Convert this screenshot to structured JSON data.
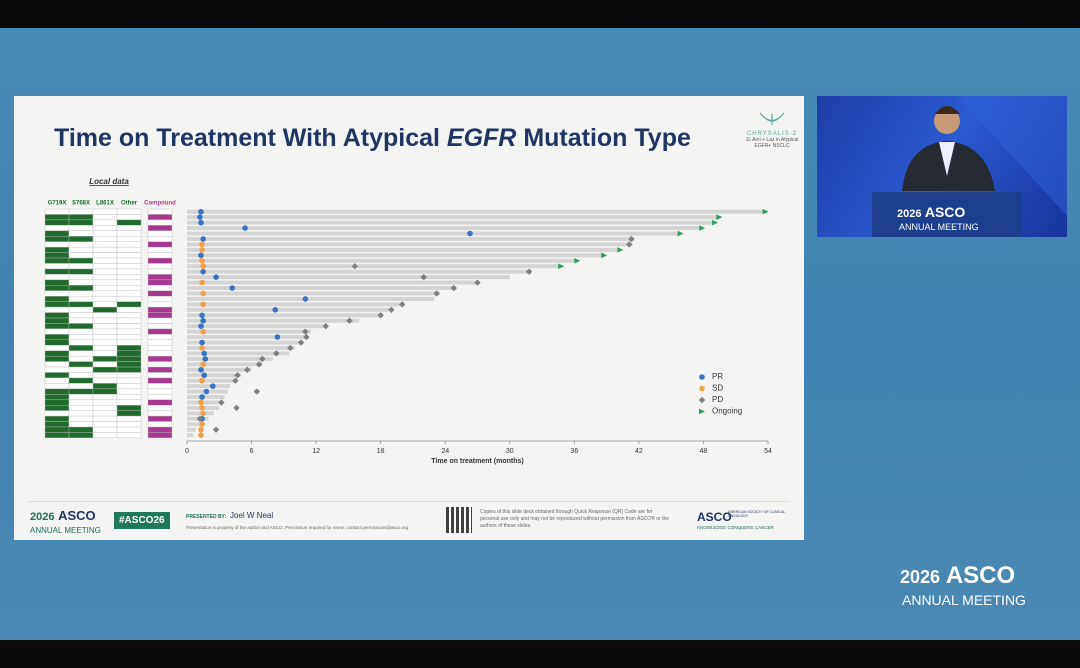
{
  "slide": {
    "title_prefix": "Time on Treatment With Atypical",
    "title_gene": "EGFR",
    "title_suffix": "Mutation Type",
    "logo_name": "CHRYSALIS-2",
    "logo_caption": "1L Ami + Laz in Atypical EGFR+ NSCLC",
    "local_data_label": "Local data",
    "footer": {
      "meeting_year": "2026",
      "meeting_name": "ASCO",
      "meeting_sub": "ANNUAL MEETING",
      "hashtag": "#ASCO26",
      "presented_by_label": "PRESENTED BY:",
      "presenter": "Joel W Neal",
      "property_note": "Presentation is property of the author and ASCO. Permission required for reuse; contact permissions@asco.org.",
      "qr_note": "Copies of this slide deck obtained through Quick Response (QR) Code are for personal use only and may not be reproduced without permission from ASCO® or the authors of these slides.",
      "asco_logo": "ASCO",
      "asco_society": "AMERICAN SOCIETY OF CLINICAL ONCOLOGY",
      "asco_tagline": "KNOWLEDGE CONQUERS CANCER"
    }
  },
  "chart_data": {
    "type": "swimmer",
    "xlabel": "Time on treatment (months)",
    "xlim": [
      0,
      54
    ],
    "xticks": [
      0,
      6,
      12,
      18,
      24,
      30,
      36,
      42,
      48,
      54
    ],
    "bar_color": "#d4d4d4",
    "durations": [
      53.5,
      49.2,
      48.8,
      47.6,
      45.6,
      41.6,
      41.4,
      40.0,
      38.5,
      36.0,
      34.5,
      32.0,
      30.0,
      27.0,
      25.0,
      23.5,
      23.0,
      20.0,
      19.0,
      18.0,
      16.0,
      13.0,
      11.5,
      11.0,
      10.5,
      10.0,
      9.5,
      8.0,
      7.0,
      6.0,
      5.0,
      4.5,
      4.0,
      3.8,
      3.5,
      3.2,
      3.0,
      2.5,
      2.0,
      1.5,
      0.8,
      0.6
    ],
    "series": [
      {
        "name": "PR",
        "color": "#3a72c4",
        "marker": "circle",
        "values": [
          1.3,
          1.2,
          1.3,
          5.4,
          26.3,
          1.5,
          null,
          null,
          1.3,
          null,
          null,
          1.5,
          2.7,
          null,
          4.2,
          null,
          11.0,
          null,
          8.2,
          1.4,
          1.5,
          1.3,
          null,
          8.4,
          1.4,
          null,
          1.6,
          1.7,
          null,
          1.3,
          1.6,
          null,
          2.4,
          1.8,
          1.4,
          null,
          null,
          null,
          1.4,
          null,
          null,
          null
        ]
      },
      {
        "name": "SD",
        "color": "#f0a04b",
        "marker": "circle",
        "values": [
          null,
          null,
          null,
          null,
          null,
          null,
          1.4,
          1.4,
          null,
          1.4,
          1.5,
          null,
          null,
          1.4,
          null,
          1.5,
          null,
          1.5,
          null,
          null,
          null,
          null,
          1.5,
          null,
          null,
          1.4,
          null,
          null,
          1.5,
          null,
          null,
          1.4,
          null,
          null,
          null,
          1.3,
          1.4,
          1.5,
          null,
          1.4,
          1.3,
          1.3
        ]
      },
      {
        "name": "PD",
        "color": "#808080",
        "marker": "diamond",
        "values": [
          null,
          null,
          null,
          null,
          null,
          41.3,
          41.1,
          null,
          null,
          null,
          15.6,
          31.8,
          22.0,
          27.0,
          24.8,
          23.2,
          null,
          20.0,
          19.0,
          18.0,
          15.1,
          12.9,
          11.0,
          11.1,
          10.6,
          9.6,
          8.3,
          7.0,
          6.7,
          5.6,
          4.7,
          4.5,
          null,
          6.5,
          null,
          3.2,
          4.6,
          null,
          1.2,
          null,
          2.7,
          null
        ]
      },
      {
        "name": "Ongoing",
        "color": "#2e9e58",
        "marker": "triangle",
        "values": [
          53.5,
          49.2,
          48.8,
          47.6,
          45.6,
          null,
          null,
          40.0,
          38.5,
          36.0,
          34.5,
          null,
          null,
          null,
          null,
          null,
          null,
          null,
          null,
          null,
          null,
          null,
          null,
          null,
          null,
          null,
          null,
          null,
          null,
          null,
          null,
          null,
          null,
          null,
          null,
          null,
          null,
          null,
          null,
          null,
          null,
          null
        ]
      }
    ],
    "mutation_columns": [
      {
        "name": "G719X",
        "color": "#1f6a2c",
        "values": [
          0,
          1,
          1,
          0,
          1,
          1,
          0,
          1,
          1,
          1,
          0,
          1,
          0,
          1,
          1,
          0,
          1,
          1,
          0,
          1,
          1,
          1,
          0,
          1,
          1,
          0,
          1,
          1,
          0,
          0,
          1,
          0,
          0,
          1,
          1,
          1,
          1,
          0,
          1,
          1,
          1,
          1
        ]
      },
      {
        "name": "S768X",
        "color": "#1f6a2c",
        "values": [
          0,
          1,
          1,
          0,
          0,
          1,
          0,
          0,
          0,
          1,
          0,
          1,
          0,
          0,
          1,
          0,
          0,
          1,
          0,
          0,
          0,
          1,
          0,
          0,
          0,
          1,
          0,
          0,
          1,
          0,
          0,
          1,
          0,
          1,
          0,
          0,
          0,
          0,
          0,
          0,
          1,
          1
        ]
      },
      {
        "name": "L861X",
        "color": "#1f6a2c",
        "values": [
          0,
          0,
          0,
          0,
          0,
          0,
          0,
          0,
          0,
          0,
          0,
          0,
          0,
          0,
          0,
          0,
          0,
          0,
          1,
          0,
          0,
          0,
          0,
          0,
          0,
          0,
          0,
          1,
          0,
          1,
          0,
          0,
          1,
          1,
          0,
          0,
          0,
          0,
          0,
          0,
          0,
          0
        ]
      },
      {
        "name": "Other",
        "color": "#1f6a2c",
        "values": [
          0,
          0,
          1,
          0,
          0,
          0,
          0,
          0,
          0,
          0,
          0,
          0,
          0,
          0,
          0,
          0,
          0,
          1,
          0,
          0,
          0,
          0,
          0,
          0,
          0,
          1,
          1,
          1,
          1,
          1,
          0,
          0,
          0,
          0,
          0,
          0,
          1,
          1,
          0,
          0,
          0,
          0
        ]
      },
      {
        "name": "Compound",
        "color": "#a8388f",
        "values": [
          0,
          1,
          0,
          1,
          0,
          0,
          1,
          0,
          0,
          1,
          0,
          0,
          1,
          1,
          0,
          1,
          0,
          0,
          1,
          1,
          0,
          0,
          1,
          0,
          0,
          0,
          0,
          1,
          0,
          1,
          0,
          1,
          0,
          0,
          0,
          1,
          0,
          0,
          1,
          0,
          1,
          1
        ]
      }
    ],
    "legend": "right"
  },
  "video": {
    "podium_year": "2026",
    "podium_name": "ASCO",
    "podium_sub": "ANNUAL MEETING"
  },
  "watermark": {
    "year": "2026",
    "name": "ASCO",
    "sub": "ANNUAL MEETING"
  }
}
